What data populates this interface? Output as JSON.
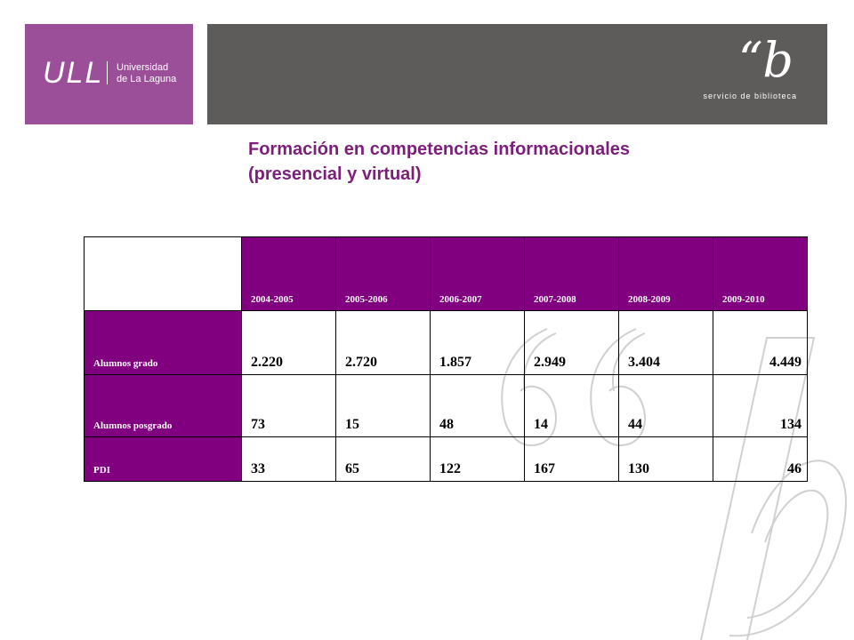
{
  "header": {
    "logo_mark": "ULL",
    "logo_line1": "Universidad",
    "logo_line2": "de La Laguna",
    "library_mark": "“b",
    "library_name": "servicio de biblioteca"
  },
  "title": {
    "line1": "Formación en competencias informacionales",
    "line2": "(presencial y virtual)"
  },
  "colors": {
    "purple_logo": "#9a4f98",
    "gray_bar": "#5e5b5b",
    "table_purple": "#800080",
    "title_color": "#7c1f7a"
  },
  "table": {
    "columns": [
      "2004-2005",
      "2005-2006",
      "2006-2007",
      "2007-2008",
      "2008-2009",
      "2009-2010"
    ],
    "rows": [
      {
        "label": "Alumnos grado",
        "values": [
          "2.220",
          "2.720",
          "1.857",
          "2.949",
          "3.404",
          "4.449"
        ]
      },
      {
        "label": "Alumnos posgrado",
        "values": [
          "73",
          "15",
          "48",
          "14",
          "44",
          "134"
        ]
      },
      {
        "label": "PDI",
        "values": [
          "33",
          "65",
          "122",
          "167",
          "130",
          "46"
        ]
      }
    ]
  }
}
